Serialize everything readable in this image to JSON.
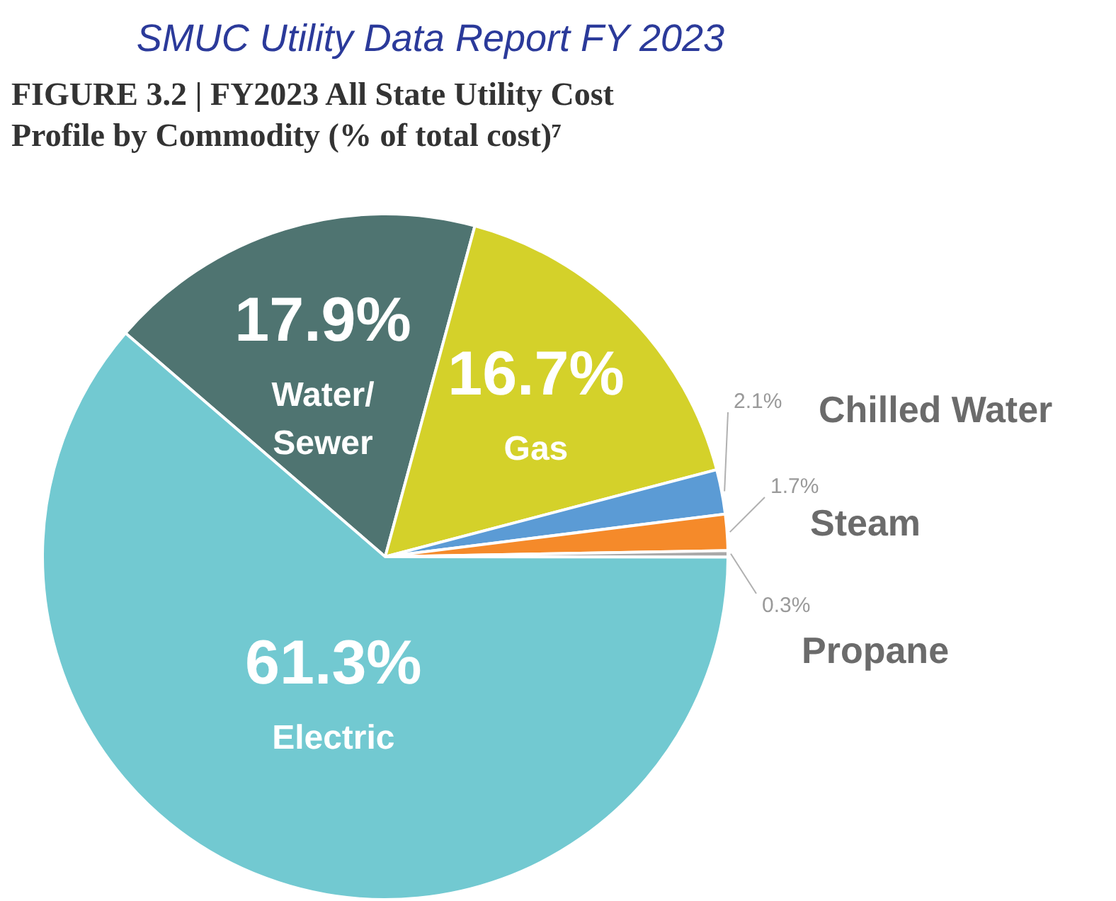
{
  "chart_data": {
    "type": "pie",
    "title": "SMUC Utility Data Report FY 2023",
    "subtitle": "FIGURE 3.2 | FY2023 All State Utility Cost Profile by Commodity (% of total cost)⁷",
    "categories": [
      "Water/Sewer",
      "Gas",
      "Chilled Water",
      "Steam",
      "Propane",
      "Electric"
    ],
    "values": [
      17.9,
      16.7,
      2.1,
      1.7,
      0.3,
      61.3
    ],
    "colors": [
      "#4f7471",
      "#d4d12a",
      "#5b9bd5",
      "#f58a2a",
      "#a9a9a9",
      "#72c9d1"
    ],
    "value_labels": [
      "17.9%",
      "16.7%",
      "2.1%",
      "1.7%",
      "0.3%",
      "61.3%"
    ]
  }
}
